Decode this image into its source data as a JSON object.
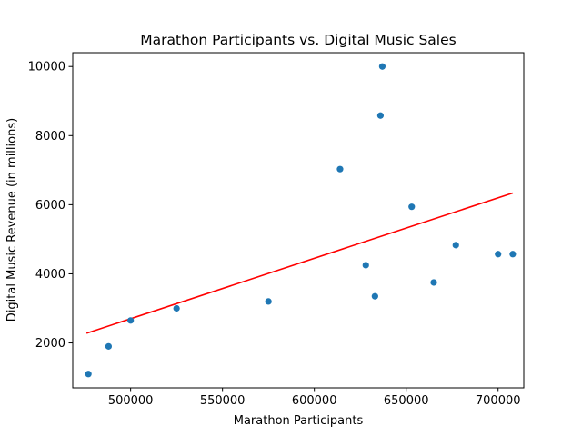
{
  "chart_data": {
    "type": "scatter",
    "title": "Marathon Participants vs. Digital Music Sales",
    "xlabel": "Marathon Participants",
    "ylabel": "Digital Music Revenue (in millions)",
    "xlim": [
      468500,
      714000
    ],
    "ylim": [
      700,
      10400
    ],
    "xticks": [
      500000,
      550000,
      600000,
      650000,
      700000
    ],
    "xtick_labels": [
      "500000",
      "550000",
      "600000",
      "650000",
      "700000"
    ],
    "yticks": [
      2000,
      4000,
      6000,
      8000,
      10000
    ],
    "ytick_labels": [
      "2000",
      "4000",
      "6000",
      "8000",
      "10000"
    ],
    "grid": false,
    "series": [
      {
        "color": "#1f77b4",
        "points": [
          {
            "x": 477000,
            "y": 1100
          },
          {
            "x": 488000,
            "y": 1900
          },
          {
            "x": 500000,
            "y": 2650
          },
          {
            "x": 525000,
            "y": 3000
          },
          {
            "x": 575000,
            "y": 3200
          },
          {
            "x": 614000,
            "y": 7030
          },
          {
            "x": 628000,
            "y": 4250
          },
          {
            "x": 633000,
            "y": 3350
          },
          {
            "x": 636000,
            "y": 8580
          },
          {
            "x": 637000,
            "y": 10000
          },
          {
            "x": 653000,
            "y": 5940
          },
          {
            "x": 665000,
            "y": 3750
          },
          {
            "x": 677000,
            "y": 4830
          },
          {
            "x": 700000,
            "y": 4570
          },
          {
            "x": 708000,
            "y": 4570
          }
        ]
      }
    ],
    "trendline": {
      "color": "#ff0000",
      "x": [
        476000,
        708000
      ],
      "y": [
        2280,
        6340
      ]
    }
  }
}
